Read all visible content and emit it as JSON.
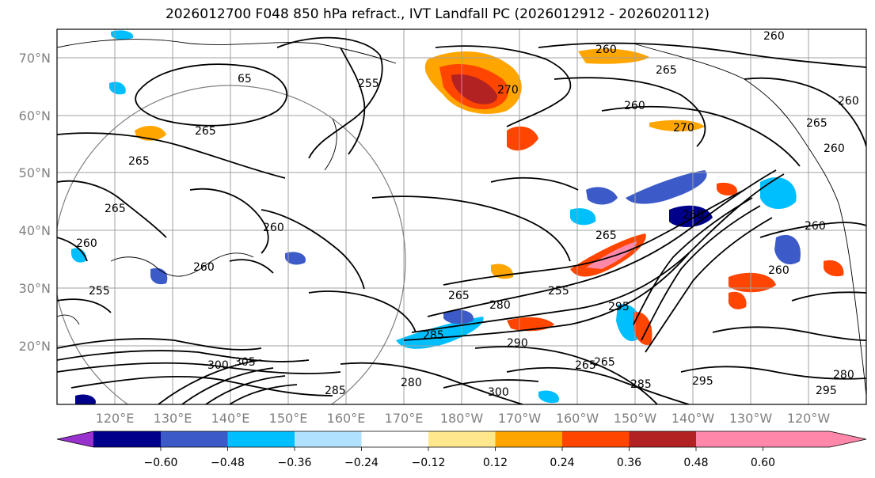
{
  "title": "2026012700 F048 850 hPa refract., IVT Landfall PC (2026012912 - 2026020112)",
  "map": {
    "lat_labels": [
      "70°N",
      "60°N",
      "50°N",
      "40°N",
      "30°N",
      "20°N"
    ],
    "lon_labels": [
      "120°E",
      "130°E",
      "140°E",
      "150°E",
      "160°E",
      "170°E",
      "180°W",
      "170°W",
      "160°W",
      "150°W",
      "140°W",
      "130°W",
      "120°W"
    ],
    "contour_labels": [
      "260",
      "260",
      "265",
      "65",
      "255",
      "270",
      "260",
      "270",
      "265",
      "260",
      "260",
      "265",
      "265",
      "265",
      "260",
      "260",
      "260",
      "260",
      "255",
      "265",
      "260",
      "265",
      "285",
      "295",
      "280",
      "290",
      "300",
      "305",
      "285",
      "280",
      "265",
      "295",
      "285",
      "280",
      "295",
      "260",
      "255",
      "265",
      "300"
    ]
  },
  "colorbar": {
    "tick_labels": [
      "−0.60",
      "−0.48",
      "−0.36",
      "−0.24",
      "−0.12",
      "0.12",
      "0.24",
      "0.36",
      "0.48",
      "0.60"
    ],
    "colors": [
      "#9932cc",
      "#00008b",
      "#3c5ac8",
      "#00bfff",
      "#b0e2ff",
      "#ffffff",
      "#ffe78c",
      "#ffa500",
      "#ff4500",
      "#b22222",
      "#ff88aa",
      "#ff88aa"
    ]
  }
}
